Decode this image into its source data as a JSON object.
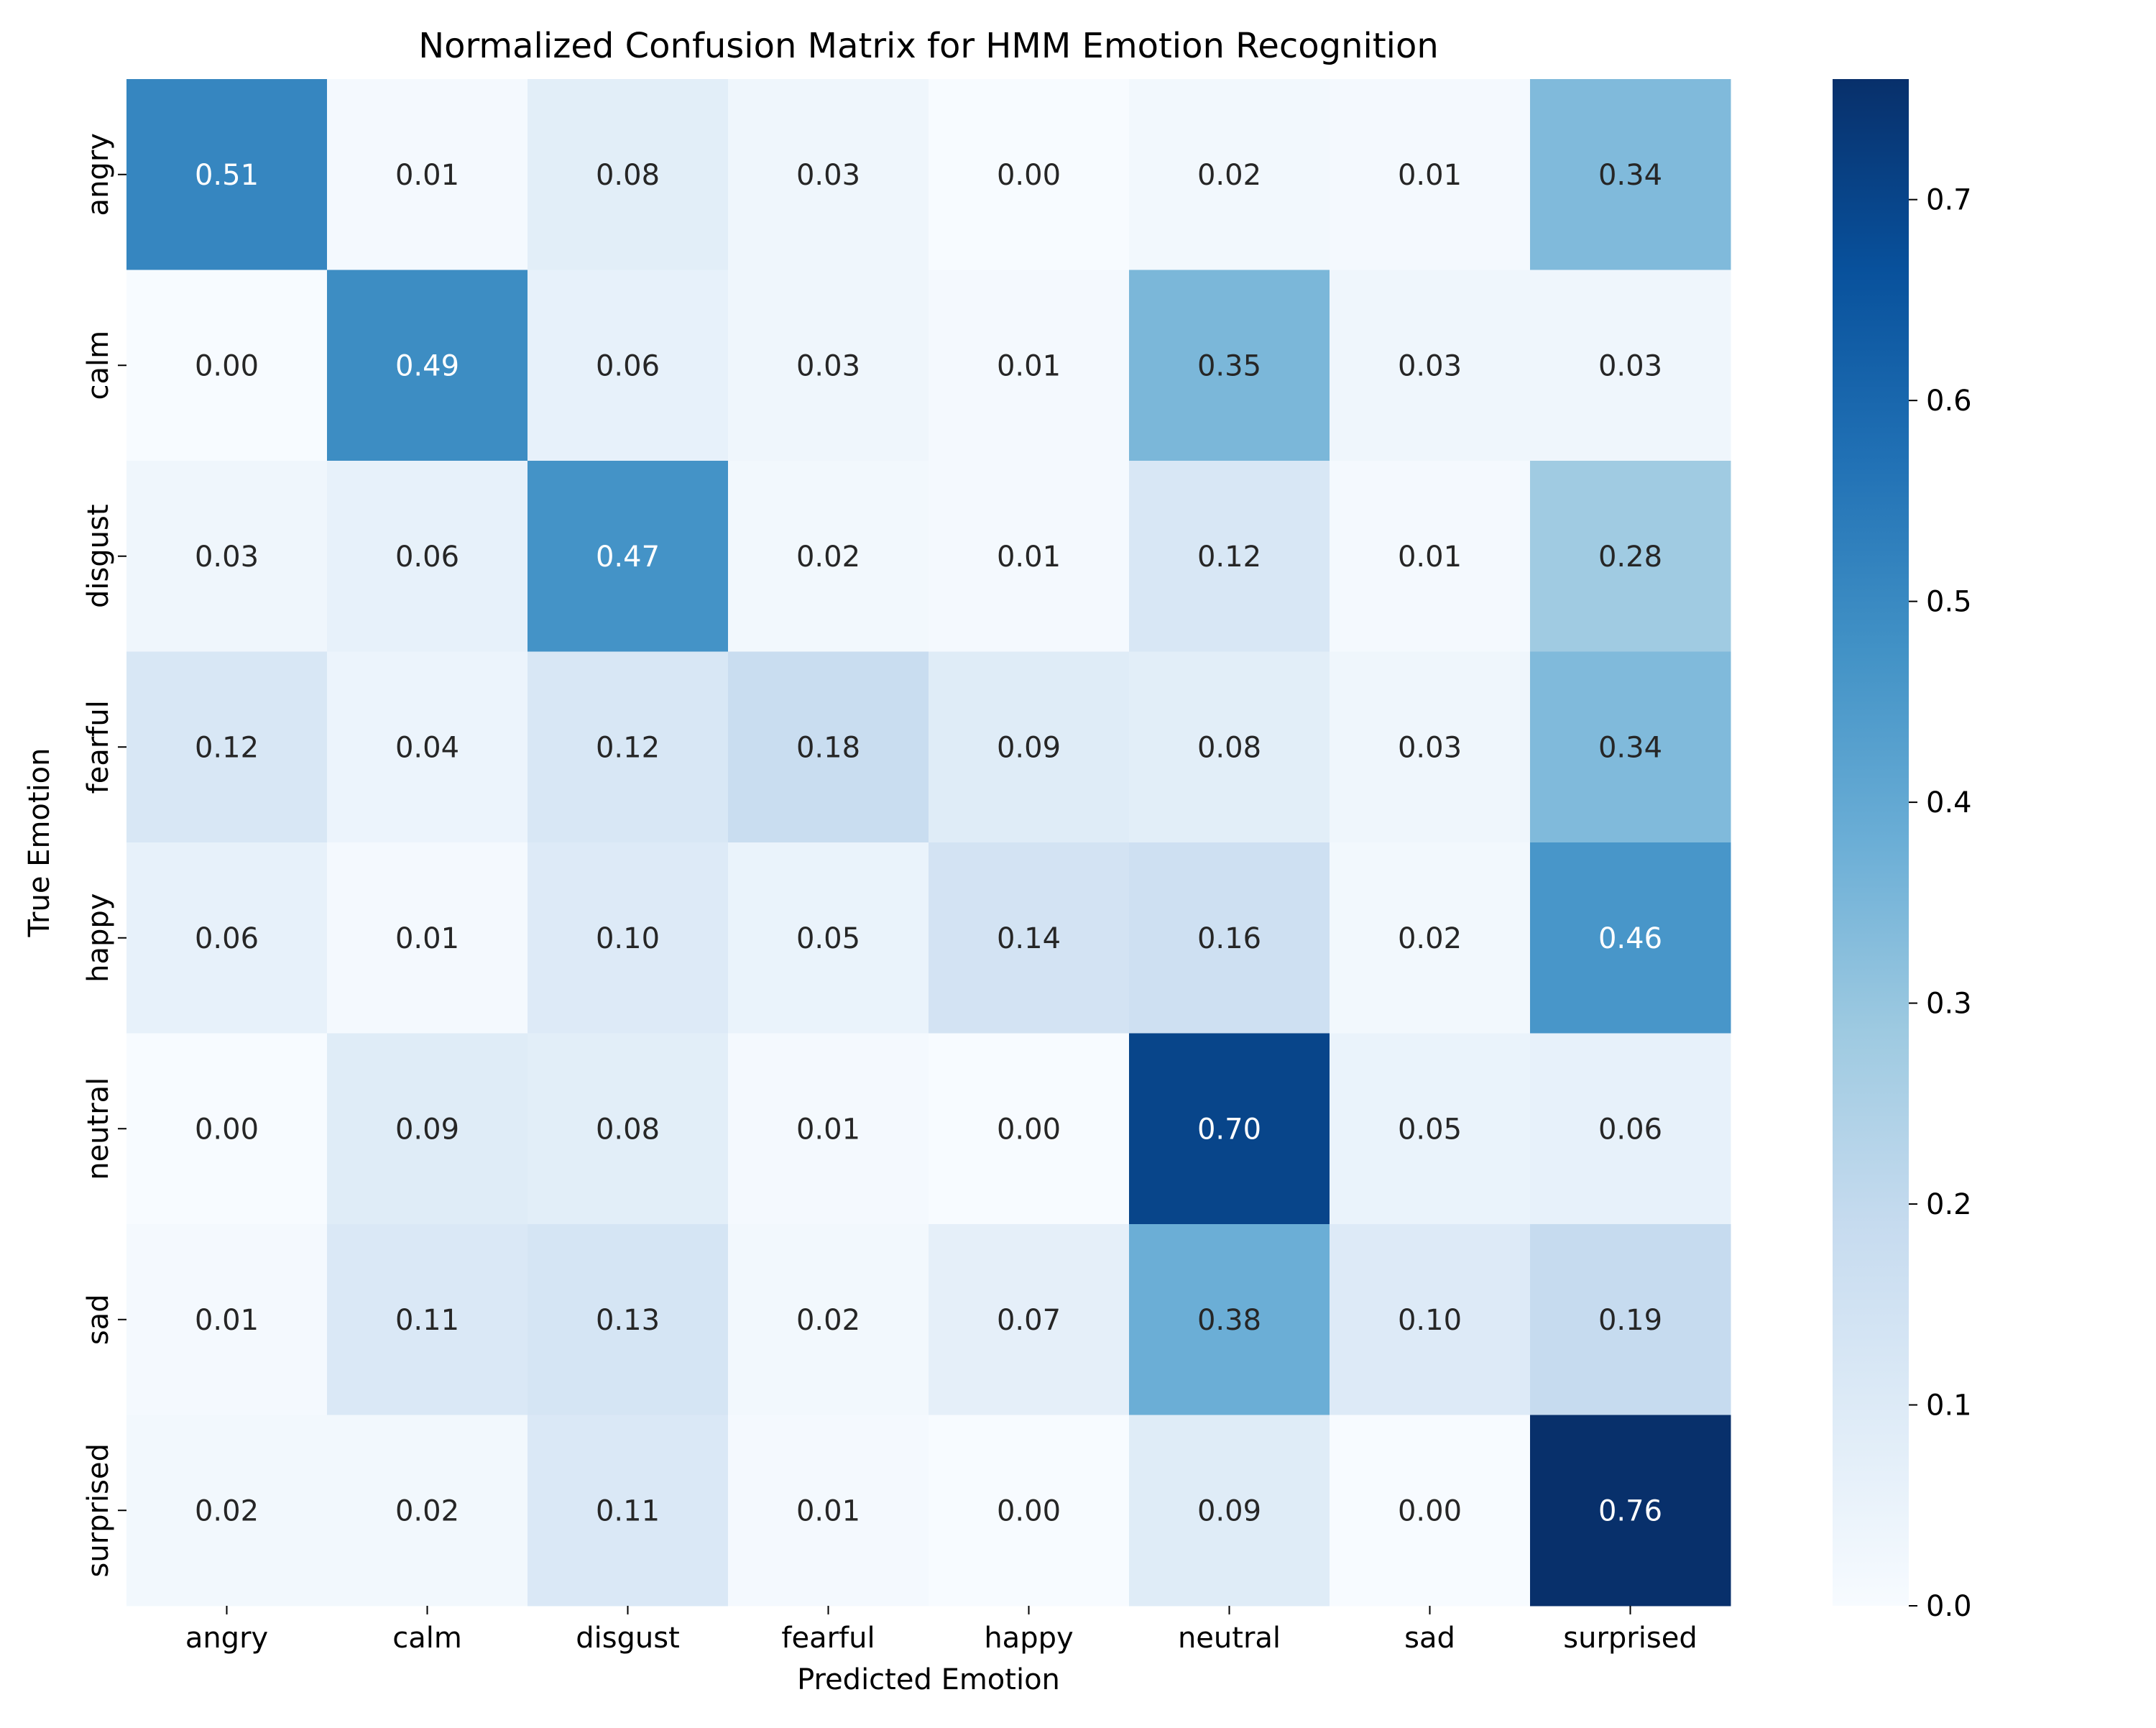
{
  "chart_data": {
    "type": "heatmap",
    "title": "Normalized Confusion Matrix for HMM Emotion Recognition",
    "xlabel": "Predicted Emotion",
    "ylabel": "True Emotion",
    "x_categories": [
      "angry",
      "calm",
      "disgust",
      "fearful",
      "happy",
      "neutral",
      "sad",
      "surprised"
    ],
    "y_categories": [
      "angry",
      "calm",
      "disgust",
      "fearful",
      "happy",
      "neutral",
      "sad",
      "surprised"
    ],
    "values": [
      [
        0.51,
        0.01,
        0.08,
        0.03,
        0.0,
        0.02,
        0.01,
        0.34
      ],
      [
        0.0,
        0.49,
        0.06,
        0.03,
        0.01,
        0.35,
        0.03,
        0.03
      ],
      [
        0.03,
        0.06,
        0.47,
        0.02,
        0.01,
        0.12,
        0.01,
        0.28
      ],
      [
        0.12,
        0.04,
        0.12,
        0.18,
        0.09,
        0.08,
        0.03,
        0.34
      ],
      [
        0.06,
        0.01,
        0.1,
        0.05,
        0.14,
        0.16,
        0.02,
        0.46
      ],
      [
        0.0,
        0.09,
        0.08,
        0.01,
        0.0,
        0.7,
        0.05,
        0.06
      ],
      [
        0.01,
        0.11,
        0.13,
        0.02,
        0.07,
        0.38,
        0.1,
        0.19
      ],
      [
        0.02,
        0.02,
        0.11,
        0.01,
        0.0,
        0.09,
        0.0,
        0.76
      ]
    ],
    "value_format": "0.00",
    "colormap": "Blues",
    "colorbar": {
      "range": [
        0.0,
        0.76
      ],
      "ticks": [
        "0.0",
        "0.1",
        "0.2",
        "0.3",
        "0.4",
        "0.5",
        "0.6",
        "0.7"
      ]
    },
    "grid": false,
    "legend": "colorbar-right"
  }
}
